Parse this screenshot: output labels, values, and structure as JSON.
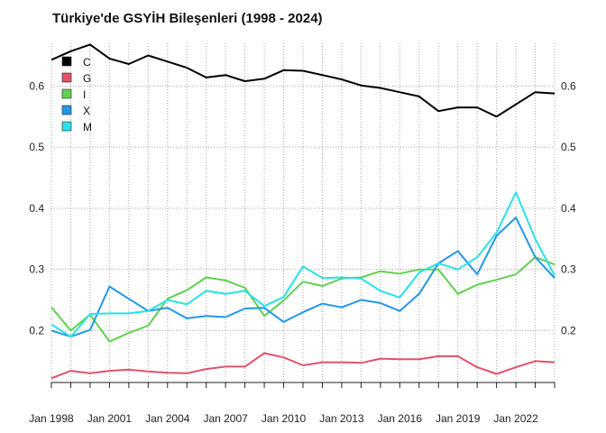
{
  "chart_data": {
    "type": "line",
    "title": "Türkiye'de GSYİH Bileşenleri (1998 - 2024)",
    "xlabel": "",
    "ylabel": "",
    "x": [
      1998,
      1999,
      2000,
      2001,
      2002,
      2003,
      2004,
      2005,
      2006,
      2007,
      2008,
      2009,
      2010,
      2011,
      2012,
      2013,
      2014,
      2015,
      2016,
      2017,
      2018,
      2019,
      2020,
      2021,
      2022,
      2023,
      2024
    ],
    "xlim": [
      1998,
      2024
    ],
    "ylim": [
      0.115,
      0.67
    ],
    "x_tick_labels": [
      "Jan 1998",
      "Jan 2001",
      "Jan 2004",
      "Jan 2007",
      "Jan 2010",
      "Jan 2013",
      "Jan 2016",
      "Jan 2019",
      "Jan 2022"
    ],
    "x_tick_years": [
      1998,
      2001,
      2004,
      2007,
      2010,
      2013,
      2016,
      2019,
      2022
    ],
    "y_ticks": [
      0.2,
      0.3,
      0.4,
      0.5,
      0.6
    ],
    "y_tick_labels": [
      "0.2",
      "0.3",
      "0.4",
      "0.5",
      "0.6"
    ],
    "grid": true,
    "grid_style": "dotted",
    "legend_position": "top-left",
    "series": [
      {
        "name": "C",
        "color": "#000000",
        "values": [
          0.643,
          0.657,
          0.668,
          0.645,
          0.636,
          0.65,
          0.64,
          0.63,
          0.614,
          0.618,
          0.608,
          0.612,
          0.626,
          0.625,
          0.618,
          0.611,
          0.601,
          0.597,
          0.59,
          0.583,
          0.559,
          0.565,
          0.565,
          0.55,
          0.57,
          0.59,
          0.588
        ]
      },
      {
        "name": "G",
        "color": "#DF536B",
        "values": [
          0.122,
          0.134,
          0.13,
          0.134,
          0.136,
          0.133,
          0.131,
          0.13,
          0.137,
          0.141,
          0.141,
          0.163,
          0.156,
          0.143,
          0.148,
          0.148,
          0.147,
          0.154,
          0.153,
          0.153,
          0.158,
          0.158,
          0.14,
          0.129,
          0.14,
          0.15,
          0.148
        ]
      },
      {
        "name": "I",
        "color": "#61D04F",
        "values": [
          0.238,
          0.2,
          0.226,
          0.182,
          0.196,
          0.208,
          0.252,
          0.266,
          0.287,
          0.282,
          0.27,
          0.224,
          0.249,
          0.28,
          0.273,
          0.285,
          0.287,
          0.297,
          0.293,
          0.3,
          0.3,
          0.26,
          0.275,
          0.283,
          0.292,
          0.32,
          0.308
        ]
      },
      {
        "name": "X",
        "color": "#2297E6",
        "values": [
          0.2,
          0.19,
          0.201,
          0.272,
          0.252,
          0.232,
          0.237,
          0.22,
          0.224,
          0.222,
          0.236,
          0.237,
          0.214,
          0.23,
          0.244,
          0.238,
          0.25,
          0.245,
          0.232,
          0.26,
          0.31,
          0.33,
          0.292,
          0.355,
          0.385,
          0.32,
          0.286
        ]
      },
      {
        "name": "M",
        "color": "#28E2E5",
        "values": [
          0.21,
          0.19,
          0.227,
          0.228,
          0.228,
          0.232,
          0.25,
          0.243,
          0.265,
          0.26,
          0.265,
          0.24,
          0.255,
          0.305,
          0.286,
          0.287,
          0.285,
          0.265,
          0.254,
          0.295,
          0.31,
          0.3,
          0.32,
          0.36,
          0.426,
          0.35,
          0.29
        ]
      }
    ]
  }
}
